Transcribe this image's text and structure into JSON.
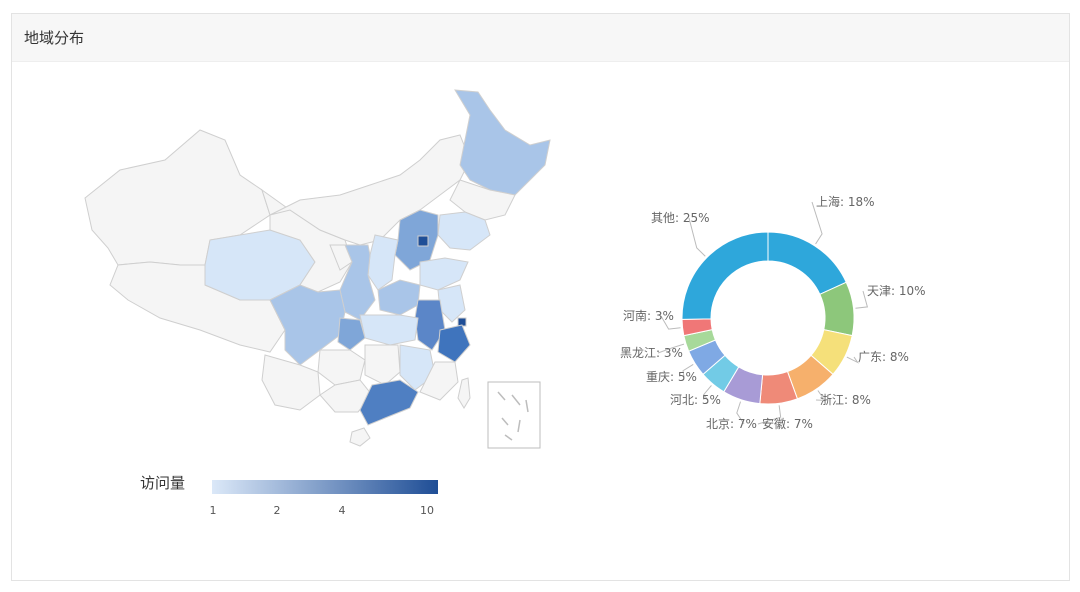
{
  "panel": {
    "title": "地域分布"
  },
  "legend": {
    "label": "访问量",
    "ticks": [
      "1",
      "2",
      "4",
      "10"
    ],
    "colors": [
      "#dbe8f8",
      "#1f4e96"
    ]
  },
  "map": {
    "base_color": "#f5f5f5",
    "border_color": "#cfcfcf"
  },
  "chart_data": {
    "type": "pie",
    "style": "donut",
    "series": [
      {
        "name": "上海",
        "value": 18,
        "label": "上海: 18%",
        "color": "#2ea7db"
      },
      {
        "name": "天津",
        "value": 10,
        "label": "天津: 10%",
        "color": "#8dc77b"
      },
      {
        "name": "广东",
        "value": 8,
        "label": "广东: 8%",
        "color": "#f5e07a"
      },
      {
        "name": "浙江",
        "value": 8,
        "label": "浙江: 8%",
        "color": "#f6b06c"
      },
      {
        "name": "安徽",
        "value": 7,
        "label": "安徽: 7%",
        "color": "#ef8a78"
      },
      {
        "name": "北京",
        "value": 7,
        "label": "北京: 7%",
        "color": "#a89bd6"
      },
      {
        "name": "河北",
        "value": 5,
        "label": "河北: 5%",
        "color": "#72cbe6"
      },
      {
        "name": "重庆",
        "value": 5,
        "label": "重庆: 5%",
        "color": "#7fa9e4"
      },
      {
        "name": "黑龙江",
        "value": 3,
        "label": "黑龙江: 3%",
        "color": "#a7d99a"
      },
      {
        "name": "河南",
        "value": 3,
        "label": "河南: 3%",
        "color": "#f07777"
      },
      {
        "name": "其他",
        "value": 25,
        "label": "其他: 25%",
        "color": "#2ea7db"
      }
    ]
  }
}
